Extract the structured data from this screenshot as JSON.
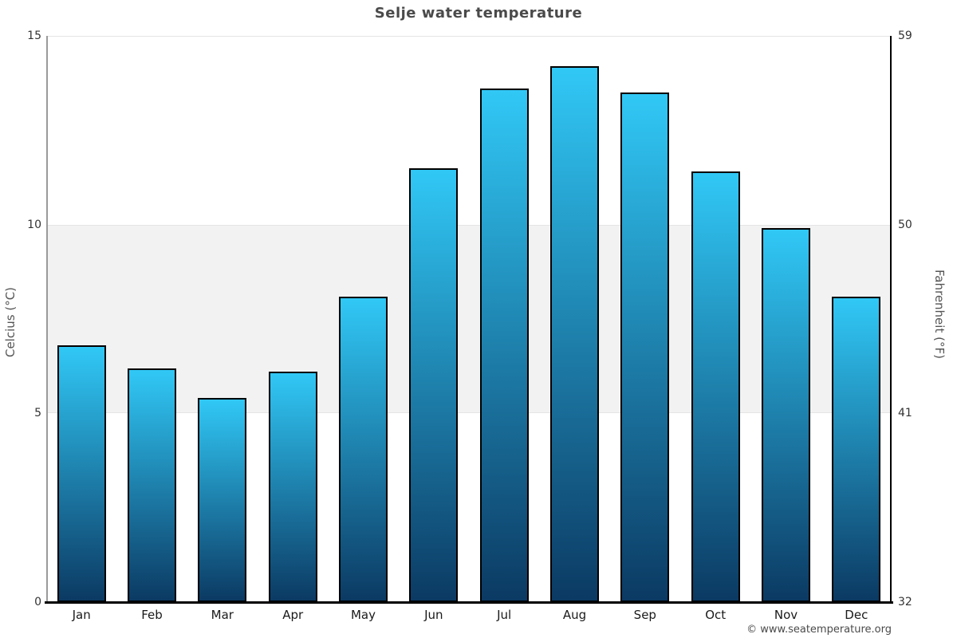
{
  "page": {
    "title": "Selje water temperature",
    "copyright": "© www.seatemperature.org"
  },
  "chart_data": {
    "type": "bar",
    "title": "Selje water temperature",
    "categories": [
      "Jan",
      "Feb",
      "Mar",
      "Apr",
      "May",
      "Jun",
      "Jul",
      "Aug",
      "Sep",
      "Oct",
      "Nov",
      "Dec"
    ],
    "values": [
      6.8,
      6.2,
      5.4,
      6.1,
      8.1,
      11.5,
      13.6,
      14.2,
      13.5,
      11.4,
      9.9,
      8.1
    ],
    "xlabel": "",
    "ylabel_left": "Celcius (°C)",
    "ylabel_right": "Fahrenheit (°F)",
    "ylim_celsius": [
      0,
      15
    ],
    "yticks_celsius": [
      0,
      5,
      10,
      15
    ],
    "yticks_fahrenheit": [
      32,
      41,
      50,
      59
    ],
    "shaded_band_celsius": [
      5,
      10
    ],
    "legend": "none",
    "grid": "band between 5 and 10 °C shaded, top gridline at 15 °C",
    "colors": {
      "bar_gradient_top": "#31c8f6",
      "bar_gradient_bottom": "#0b3a63",
      "bar_border": "#000000",
      "band_fill": "#f2f2f2",
      "gridline": "#e4e4e4",
      "left_axis_line": "#9a9a9a",
      "right_axis_line": "#000000",
      "baseline": "#000000",
      "title_text": "#4a4a4a",
      "tick_text": "#333333",
      "axis_title_text": "#555555"
    }
  }
}
